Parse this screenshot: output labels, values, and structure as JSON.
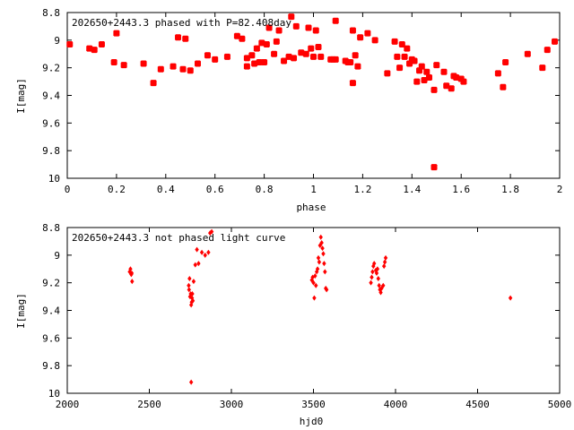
{
  "chart_data": [
    {
      "type": "scatter",
      "title": "202650+2443.3 phased with P=82.408day",
      "xlabel": "phase",
      "ylabel": "I[mag]",
      "xlim": [
        0,
        2
      ],
      "ylim": [
        8.8,
        10
      ],
      "y_inverted": true,
      "x_ticks": [
        0,
        0.2,
        0.4,
        0.6,
        0.8,
        1,
        1.2,
        1.4,
        1.6,
        1.8,
        2
      ],
      "x_tick_labels": [
        "0",
        "0.2",
        "0.4",
        "0.6",
        "0.8",
        "1",
        "1.2",
        "1.4",
        "1.6",
        "1.8",
        "2"
      ],
      "y_ticks": [
        8.8,
        9,
        9.2,
        9.4,
        9.6,
        9.8,
        10
      ],
      "y_tick_labels": [
        "8.8",
        "9",
        "9.2",
        "9.4",
        "9.6",
        "9.8",
        "10"
      ],
      "grid": false,
      "marker_color": "#ff0000",
      "points": [
        [
          0.01,
          9.03
        ],
        [
          0.09,
          9.06
        ],
        [
          0.11,
          9.07
        ],
        [
          0.14,
          9.03
        ],
        [
          0.19,
          9.16
        ],
        [
          0.2,
          8.95
        ],
        [
          0.23,
          9.18
        ],
        [
          0.31,
          9.17
        ],
        [
          0.35,
          9.31
        ],
        [
          0.38,
          9.21
        ],
        [
          0.43,
          9.19
        ],
        [
          0.45,
          8.98
        ],
        [
          0.47,
          9.21
        ],
        [
          0.48,
          8.99
        ],
        [
          0.5,
          9.22
        ],
        [
          0.53,
          9.17
        ],
        [
          0.57,
          9.11
        ],
        [
          0.6,
          9.14
        ],
        [
          0.65,
          9.12
        ],
        [
          0.69,
          8.97
        ],
        [
          0.71,
          8.99
        ],
        [
          0.73,
          9.13
        ],
        [
          0.73,
          9.19
        ],
        [
          0.75,
          9.11
        ],
        [
          0.76,
          9.17
        ],
        [
          0.77,
          9.06
        ],
        [
          0.78,
          9.16
        ],
        [
          0.79,
          9.02
        ],
        [
          0.8,
          9.16
        ],
        [
          0.81,
          9.03
        ],
        [
          0.82,
          8.91
        ],
        [
          0.84,
          9.1
        ],
        [
          0.85,
          9.01
        ],
        [
          0.86,
          8.93
        ],
        [
          0.88,
          9.15
        ],
        [
          0.9,
          9.12
        ],
        [
          0.91,
          8.83
        ],
        [
          0.92,
          9.13
        ],
        [
          0.93,
          8.9
        ],
        [
          0.95,
          9.09
        ],
        [
          0.97,
          9.1
        ],
        [
          0.98,
          8.91
        ],
        [
          0.99,
          9.06
        ],
        [
          1.0,
          9.12
        ],
        [
          1.01,
          8.93
        ],
        [
          1.02,
          9.05
        ],
        [
          1.03,
          9.12
        ],
        [
          1.07,
          9.14
        ],
        [
          1.08,
          9.14
        ],
        [
          1.09,
          9.14
        ],
        [
          1.09,
          8.86
        ],
        [
          1.13,
          9.15
        ],
        [
          1.14,
          9.16
        ],
        [
          1.15,
          9.16
        ],
        [
          1.16,
          9.31
        ],
        [
          1.16,
          8.93
        ],
        [
          1.17,
          9.11
        ],
        [
          1.18,
          9.19
        ],
        [
          1.19,
          8.98
        ],
        [
          1.22,
          8.95
        ],
        [
          1.25,
          9.0
        ],
        [
          1.3,
          9.24
        ],
        [
          1.33,
          9.01
        ],
        [
          1.34,
          9.12
        ],
        [
          1.35,
          9.2
        ],
        [
          1.36,
          9.03
        ],
        [
          1.37,
          9.12
        ],
        [
          1.38,
          9.06
        ],
        [
          1.39,
          9.17
        ],
        [
          1.4,
          9.14
        ],
        [
          1.41,
          9.15
        ],
        [
          1.42,
          9.3
        ],
        [
          1.43,
          9.22
        ],
        [
          1.44,
          9.19
        ],
        [
          1.45,
          9.29
        ],
        [
          1.46,
          9.23
        ],
        [
          1.47,
          9.27
        ],
        [
          1.49,
          9.36
        ],
        [
          1.49,
          9.92
        ],
        [
          1.5,
          9.18
        ],
        [
          1.53,
          9.23
        ],
        [
          1.54,
          9.33
        ],
        [
          1.56,
          9.35
        ],
        [
          1.57,
          9.26
        ],
        [
          1.58,
          9.27
        ],
        [
          1.6,
          9.28
        ],
        [
          1.61,
          9.3
        ],
        [
          1.75,
          9.24
        ],
        [
          1.77,
          9.34
        ],
        [
          1.78,
          9.16
        ],
        [
          1.87,
          9.1
        ],
        [
          1.93,
          9.2
        ],
        [
          1.95,
          9.07
        ],
        [
          1.98,
          9.01
        ]
      ]
    },
    {
      "type": "scatter",
      "title": "202650+2443.3 not phased light curve",
      "xlabel": "hjd0",
      "ylabel": "I[mag]",
      "xlim": [
        2000,
        5000
      ],
      "ylim": [
        8.8,
        10
      ],
      "y_inverted": true,
      "x_ticks": [
        2000,
        2500,
        3000,
        3500,
        4000,
        4500,
        5000
      ],
      "x_tick_labels": [
        "2000",
        "2500",
        "3000",
        "3500",
        "4000",
        "4500",
        "5000"
      ],
      "y_ticks": [
        8.8,
        9,
        9.2,
        9.4,
        9.6,
        9.8,
        10
      ],
      "y_tick_labels": [
        "8.8",
        "9",
        "9.2",
        "9.4",
        "9.6",
        "9.8",
        "10"
      ],
      "grid": false,
      "marker_color": "#ff0000",
      "points": [
        [
          2380,
          9.12
        ],
        [
          2385,
          9.1
        ],
        [
          2390,
          9.14
        ],
        [
          2395,
          9.19
        ],
        [
          2393,
          9.13
        ],
        [
          2740,
          9.22
        ],
        [
          2742,
          9.25
        ],
        [
          2745,
          9.17
        ],
        [
          2748,
          9.3
        ],
        [
          2752,
          9.28
        ],
        [
          2755,
          9.36
        ],
        [
          2758,
          9.34
        ],
        [
          2760,
          9.31
        ],
        [
          2762,
          9.28
        ],
        [
          2765,
          9.33
        ],
        [
          2755,
          9.92
        ],
        [
          2770,
          9.19
        ],
        [
          2780,
          9.07
        ],
        [
          2790,
          8.96
        ],
        [
          2800,
          9.06
        ],
        [
          2820,
          8.98
        ],
        [
          2840,
          9.0
        ],
        [
          2860,
          8.98
        ],
        [
          2870,
          8.84
        ],
        [
          2880,
          8.83
        ],
        [
          3490,
          9.18
        ],
        [
          3495,
          9.16
        ],
        [
          3500,
          9.2
        ],
        [
          3505,
          9.31
        ],
        [
          3510,
          9.15
        ],
        [
          3515,
          9.22
        ],
        [
          3520,
          9.12
        ],
        [
          3525,
          9.1
        ],
        [
          3530,
          9.02
        ],
        [
          3535,
          9.05
        ],
        [
          3540,
          8.93
        ],
        [
          3545,
          8.87
        ],
        [
          3550,
          8.91
        ],
        [
          3555,
          8.95
        ],
        [
          3560,
          8.99
        ],
        [
          3565,
          9.06
        ],
        [
          3570,
          9.12
        ],
        [
          3575,
          9.24
        ],
        [
          3580,
          9.25
        ],
        [
          3850,
          9.2
        ],
        [
          3855,
          9.16
        ],
        [
          3860,
          9.12
        ],
        [
          3865,
          9.08
        ],
        [
          3870,
          9.06
        ],
        [
          3880,
          9.11
        ],
        [
          3885,
          9.13
        ],
        [
          3890,
          9.1
        ],
        [
          3895,
          9.17
        ],
        [
          3900,
          9.22
        ],
        [
          3905,
          9.25
        ],
        [
          3910,
          9.27
        ],
        [
          3915,
          9.24
        ],
        [
          3925,
          9.22
        ],
        [
          3930,
          9.08
        ],
        [
          3935,
          9.05
        ],
        [
          3940,
          9.02
        ],
        [
          4700,
          9.31
        ]
      ]
    }
  ]
}
